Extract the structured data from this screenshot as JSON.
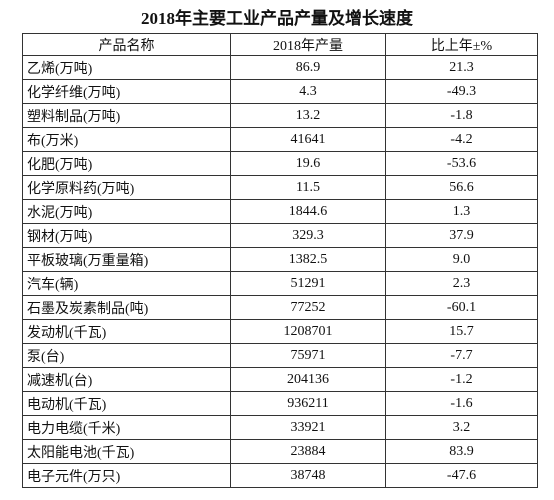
{
  "header": {
    "title": "2018年主要工业产品产量及增长速度"
  },
  "table": {
    "columns": [
      "产品名称",
      "2018年产量",
      "比上年±%"
    ],
    "rows": [
      [
        "乙烯(万吨)",
        "86.9",
        "21.3"
      ],
      [
        "化学纤维(万吨)",
        "4.3",
        "-49.3"
      ],
      [
        "塑料制品(万吨)",
        "13.2",
        "-1.8"
      ],
      [
        "布(万米)",
        "41641",
        "-4.2"
      ],
      [
        "化肥(万吨)",
        "19.6",
        "-53.6"
      ],
      [
        "化学原料药(万吨)",
        "11.5",
        "56.6"
      ],
      [
        "水泥(万吨)",
        "1844.6",
        "1.3"
      ],
      [
        "钢材(万吨)",
        "329.3",
        "37.9"
      ],
      [
        "平板玻璃(万重量箱)",
        "1382.5",
        "9.0"
      ],
      [
        "汽车(辆)",
        "51291",
        "2.3"
      ],
      [
        "石墨及炭素制品(吨)",
        "77252",
        "-60.1"
      ],
      [
        "发动机(千瓦)",
        "1208701",
        "15.7"
      ],
      [
        "泵(台)",
        "75971",
        "-7.7"
      ],
      [
        "减速机(台)",
        "204136",
        "-1.2"
      ],
      [
        "电动机(千瓦)",
        "936211",
        "-1.6"
      ],
      [
        "电力电缆(千米)",
        "33921",
        "3.2"
      ],
      [
        "太阳能电池(千瓦)",
        "23884",
        "83.9"
      ],
      [
        "电子元件(万只)",
        "38748",
        "-47.6"
      ]
    ]
  }
}
